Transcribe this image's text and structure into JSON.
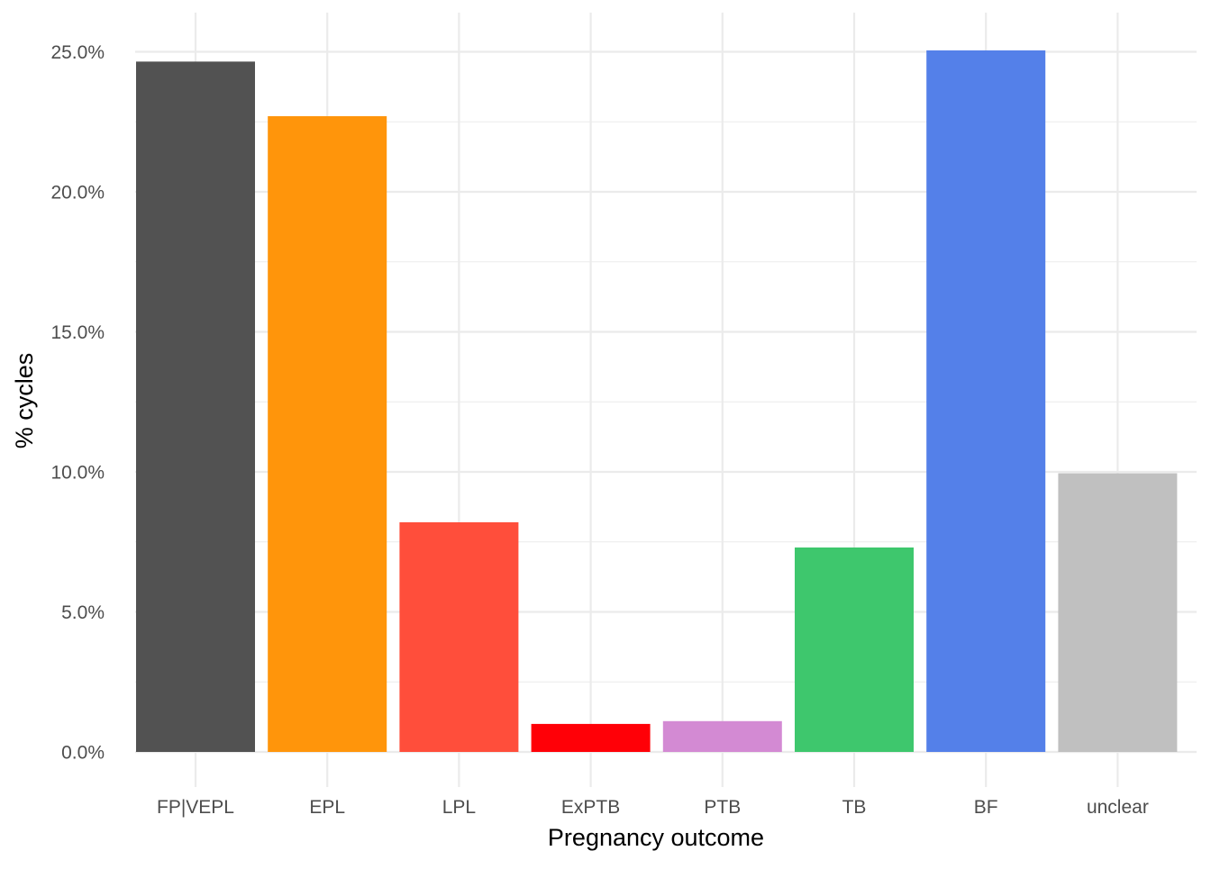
{
  "chart_data": {
    "type": "bar",
    "title": "",
    "xlabel": "Pregnancy outcome",
    "ylabel": "% cycles",
    "categories": [
      "FP|VEPL",
      "EPL",
      "LPL",
      "ExPTB",
      "PTB",
      "TB",
      "BF",
      "unclear"
    ],
    "values": [
      24.65,
      22.7,
      8.2,
      1.0,
      1.1,
      7.3,
      25.05,
      9.95
    ],
    "colors": [
      "#525252",
      "#FF950B",
      "#FF4E3B",
      "#FF0007",
      "#D38AD3",
      "#3EC76D",
      "#5480E9",
      "#C0C0C0"
    ],
    "ylim": [
      0,
      25
    ],
    "y_ticks": [
      0,
      5,
      10,
      15,
      20,
      25
    ],
    "y_tick_labels": [
      "0.0%",
      "5.0%",
      "10.0%",
      "15.0%",
      "20.0%",
      "25.0%"
    ],
    "grid": true,
    "legend": "none"
  }
}
